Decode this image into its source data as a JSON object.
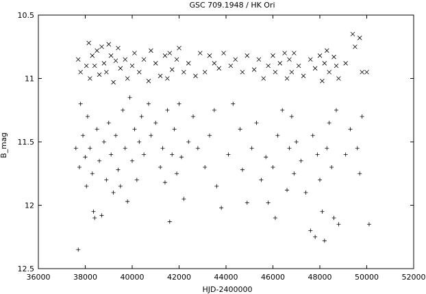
{
  "chart_data": {
    "type": "scatter",
    "title": "GSC 709.1948 / HK Ori",
    "xlabel": "HJD-2400000",
    "ylabel": "B_mag",
    "xlim": [
      36000,
      52000
    ],
    "ylim": [
      12.5,
      10.5
    ],
    "y_inverted": true,
    "x_ticks": [
      "36000",
      "38000",
      "40000",
      "42000",
      "44000",
      "46000",
      "48000",
      "50000",
      "52000"
    ],
    "y_ticks": [
      "10.5",
      "11",
      "11.5",
      "12",
      "12.5"
    ],
    "grid": false,
    "legend": "none",
    "series": [
      {
        "marker": "x",
        "points": [
          [
            37700,
            10.85
          ],
          [
            37800,
            10.95
          ],
          [
            38050,
            10.9
          ],
          [
            38150,
            10.72
          ],
          [
            38200,
            11.0
          ],
          [
            38300,
            10.82
          ],
          [
            38400,
            10.9
          ],
          [
            38500,
            10.78
          ],
          [
            38600,
            10.97
          ],
          [
            38700,
            10.75
          ],
          [
            38800,
            10.88
          ],
          [
            38900,
            10.95
          ],
          [
            39000,
            10.73
          ],
          [
            39100,
            10.82
          ],
          [
            39200,
            11.03
          ],
          [
            39300,
            10.86
          ],
          [
            39400,
            10.76
          ],
          [
            39500,
            10.92
          ],
          [
            39700,
            10.85
          ],
          [
            39800,
            11.0
          ],
          [
            40000,
            10.9
          ],
          [
            40100,
            10.8
          ],
          [
            40300,
            10.95
          ],
          [
            40500,
            10.85
          ],
          [
            40700,
            11.02
          ],
          [
            40800,
            10.78
          ],
          [
            41000,
            10.88
          ],
          [
            41200,
            10.98
          ],
          [
            41400,
            10.82
          ],
          [
            41500,
            11.0
          ],
          [
            41600,
            10.8
          ],
          [
            41700,
            10.93
          ],
          [
            41900,
            10.85
          ],
          [
            42000,
            10.76
          ],
          [
            42200,
            10.95
          ],
          [
            42400,
            10.88
          ],
          [
            42700,
            10.98
          ],
          [
            42900,
            10.8
          ],
          [
            43100,
            10.95
          ],
          [
            43300,
            10.82
          ],
          [
            43500,
            10.88
          ],
          [
            43700,
            10.92
          ],
          [
            43900,
            10.8
          ],
          [
            44200,
            10.9
          ],
          [
            44400,
            10.85
          ],
          [
            44700,
            10.95
          ],
          [
            44900,
            10.82
          ],
          [
            45200,
            10.93
          ],
          [
            45400,
            10.85
          ],
          [
            45600,
            11.0
          ],
          [
            45800,
            10.9
          ],
          [
            46000,
            10.82
          ],
          [
            46100,
            10.95
          ],
          [
            46300,
            10.88
          ],
          [
            46500,
            10.8
          ],
          [
            46600,
            11.0
          ],
          [
            46700,
            10.85
          ],
          [
            46800,
            10.95
          ],
          [
            46900,
            10.8
          ],
          [
            47100,
            10.9
          ],
          [
            47300,
            10.98
          ],
          [
            47600,
            10.85
          ],
          [
            47800,
            10.92
          ],
          [
            48000,
            10.82
          ],
          [
            48100,
            11.02
          ],
          [
            48200,
            10.88
          ],
          [
            48300,
            10.78
          ],
          [
            48400,
            10.95
          ],
          [
            48600,
            10.83
          ],
          [
            48700,
            10.9
          ],
          [
            48800,
            11.0
          ],
          [
            49100,
            10.88
          ],
          [
            49400,
            10.65
          ],
          [
            49500,
            10.75
          ],
          [
            49700,
            10.68
          ],
          [
            49800,
            10.95
          ],
          [
            50000,
            10.95
          ]
        ]
      },
      {
        "marker": "+",
        "points": [
          [
            37600,
            11.55
          ],
          [
            37700,
            12.35
          ],
          [
            37750,
            11.7
          ],
          [
            37800,
            11.2
          ],
          [
            37900,
            11.45
          ],
          [
            38000,
            11.62
          ],
          [
            38050,
            11.85
          ],
          [
            38100,
            11.3
          ],
          [
            38200,
            11.55
          ],
          [
            38300,
            11.75
          ],
          [
            38350,
            12.05
          ],
          [
            38400,
            12.1
          ],
          [
            38500,
            11.4
          ],
          [
            38600,
            11.65
          ],
          [
            38700,
            12.08
          ],
          [
            38800,
            11.5
          ],
          [
            38900,
            11.8
          ],
          [
            39000,
            11.35
          ],
          [
            39100,
            11.6
          ],
          [
            39200,
            11.9
          ],
          [
            39300,
            11.45
          ],
          [
            39400,
            11.72
          ],
          [
            39500,
            11.85
          ],
          [
            39600,
            11.25
          ],
          [
            39700,
            11.55
          ],
          [
            39800,
            11.97
          ],
          [
            39900,
            11.15
          ],
          [
            40000,
            11.65
          ],
          [
            40100,
            11.4
          ],
          [
            40200,
            11.8
          ],
          [
            40300,
            11.5
          ],
          [
            40400,
            11.3
          ],
          [
            40500,
            11.6
          ],
          [
            40700,
            11.2
          ],
          [
            40800,
            11.45
          ],
          [
            41000,
            11.35
          ],
          [
            41200,
            11.7
          ],
          [
            41300,
            11.55
          ],
          [
            41400,
            11.82
          ],
          [
            41500,
            11.25
          ],
          [
            41600,
            12.13
          ],
          [
            41700,
            11.6
          ],
          [
            41800,
            11.4
          ],
          [
            41900,
            11.75
          ],
          [
            42000,
            11.2
          ],
          [
            42100,
            11.62
          ],
          [
            42200,
            11.95
          ],
          [
            42400,
            11.5
          ],
          [
            42600,
            11.3
          ],
          [
            42800,
            11.55
          ],
          [
            43100,
            11.7
          ],
          [
            43300,
            11.45
          ],
          [
            43500,
            11.25
          ],
          [
            43600,
            11.85
          ],
          [
            43800,
            12.02
          ],
          [
            44100,
            11.6
          ],
          [
            44300,
            11.2
          ],
          [
            44600,
            11.4
          ],
          [
            44700,
            11.72
          ],
          [
            44900,
            11.98
          ],
          [
            45100,
            11.55
          ],
          [
            45300,
            11.35
          ],
          [
            45500,
            11.8
          ],
          [
            45700,
            11.62
          ],
          [
            45800,
            11.98
          ],
          [
            46000,
            11.7
          ],
          [
            46100,
            12.1
          ],
          [
            46200,
            11.45
          ],
          [
            46400,
            11.25
          ],
          [
            46600,
            11.88
          ],
          [
            46700,
            11.55
          ],
          [
            46800,
            11.3
          ],
          [
            46900,
            11.75
          ],
          [
            47000,
            11.5
          ],
          [
            47200,
            11.65
          ],
          [
            47400,
            11.9
          ],
          [
            47600,
            12.2
          ],
          [
            47700,
            11.45
          ],
          [
            47800,
            12.25
          ],
          [
            47900,
            11.6
          ],
          [
            48000,
            11.8
          ],
          [
            48100,
            12.05
          ],
          [
            48200,
            12.28
          ],
          [
            48300,
            11.55
          ],
          [
            48400,
            11.35
          ],
          [
            48500,
            11.7
          ],
          [
            48600,
            12.1
          ],
          [
            48700,
            11.25
          ],
          [
            48800,
            12.15
          ],
          [
            49100,
            11.6
          ],
          [
            49300,
            11.4
          ],
          [
            49600,
            11.55
          ],
          [
            49700,
            11.75
          ],
          [
            49800,
            11.3
          ],
          [
            50100,
            12.15
          ]
        ]
      }
    ]
  }
}
